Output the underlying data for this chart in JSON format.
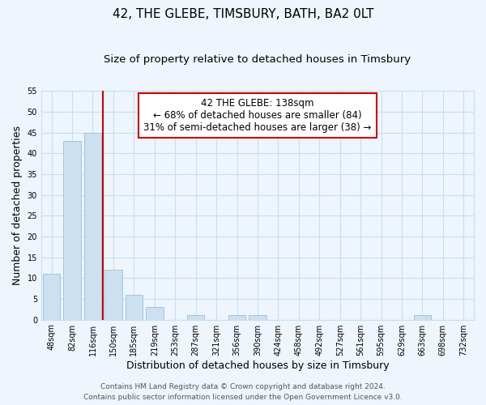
{
  "title": "42, THE GLEBE, TIMSBURY, BATH, BA2 0LT",
  "subtitle": "Size of property relative to detached houses in Timsbury",
  "xlabel": "Distribution of detached houses by size in Timsbury",
  "ylabel": "Number of detached properties",
  "bar_labels": [
    "48sqm",
    "82sqm",
    "116sqm",
    "150sqm",
    "185sqm",
    "219sqm",
    "253sqm",
    "287sqm",
    "321sqm",
    "356sqm",
    "390sqm",
    "424sqm",
    "458sqm",
    "492sqm",
    "527sqm",
    "561sqm",
    "595sqm",
    "629sqm",
    "663sqm",
    "698sqm",
    "732sqm"
  ],
  "bar_values": [
    11,
    43,
    45,
    12,
    6,
    3,
    0,
    1,
    0,
    1,
    1,
    0,
    0,
    0,
    0,
    0,
    0,
    0,
    1,
    0,
    0
  ],
  "bar_color": "#cce0f0",
  "bar_edge_color": "#99c0e0",
  "grid_color": "#c8dff0",
  "background_color": "#eef5fc",
  "ylim": [
    0,
    55
  ],
  "yticks": [
    0,
    5,
    10,
    15,
    20,
    25,
    30,
    35,
    40,
    45,
    50,
    55
  ],
  "property_line_x": 2.5,
  "property_line_color": "#cc0000",
  "annotation_text": "42 THE GLEBE: 138sqm\n← 68% of detached houses are smaller (84)\n31% of semi-detached houses are larger (38) →",
  "annotation_box_color": "#ffffff",
  "annotation_box_edge": "#cc0000",
  "footer_line1": "Contains HM Land Registry data © Crown copyright and database right 2024.",
  "footer_line2": "Contains public sector information licensed under the Open Government Licence v3.0.",
  "title_fontsize": 11,
  "subtitle_fontsize": 9.5,
  "axis_label_fontsize": 9,
  "tick_fontsize": 7,
  "footer_fontsize": 6.5,
  "annotation_fontsize": 8.5
}
